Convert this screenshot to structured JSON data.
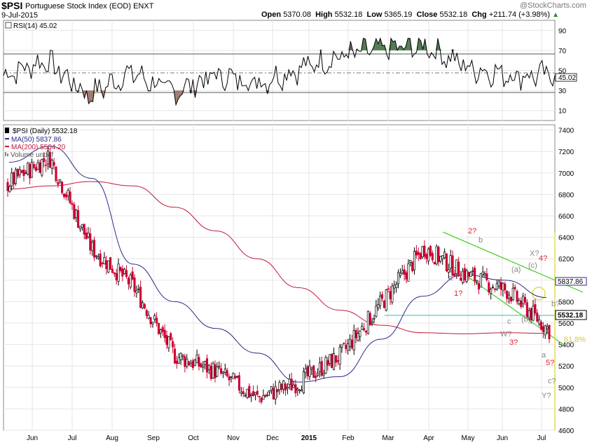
{
  "header": {
    "ticker": "$PSI",
    "description": "Portuguese Stock Index (EOD)  ENXT",
    "date": "9-Jul-2015",
    "open_label": "Open",
    "open": "5370.08",
    "high_label": "High",
    "high": "5532.18",
    "low_label": "Low",
    "low": "5365.19",
    "close_label": "Close",
    "close": "5532.18",
    "chg_label": "Chg",
    "chg": "+211.74 (+3.98%)",
    "up_icon": "up-arrow-icon",
    "copyright": "@StockCharts.com"
  },
  "colors": {
    "rsi_line": "#000000",
    "rsi_fill": "#9e7a6e",
    "rsi_fill_top": "#4f7a4f",
    "price_up": "#000000",
    "price_down": "#cc0033",
    "ma50": "#2a2a8c",
    "ma200": "#c01a3a",
    "channel": "#44cc22",
    "support": "#33bbbb",
    "fib": "#dddd55",
    "ann_red": "#e0202a",
    "ann_gray": "#888888",
    "grid": "#e6e6e6"
  },
  "rsi_panel": {
    "label": "RSI(14) 45.02",
    "ticks": [
      "90",
      "70",
      "50",
      "30",
      "10"
    ],
    "current_label": "45.02",
    "levels": [
      70,
      50,
      30
    ]
  },
  "price_panel": {
    "legend": [
      {
        "label": "$PSI (Daily) 5532.18",
        "icon": "candlestick-icon"
      },
      {
        "label": "MA(50) 5837.86",
        "icon": "line-swatch-icon"
      },
      {
        "label": "MA(200) 5504.20",
        "icon": "line-swatch-icon"
      },
      {
        "label": "Volume undef",
        "icon": "volume-bars-icon"
      }
    ],
    "ticks": [
      "7400",
      "7200",
      "7000",
      "6800",
      "6600",
      "6400",
      "6200",
      "6000",
      "5800",
      "5600",
      "5400",
      "5200",
      "5000",
      "4800",
      "4600"
    ],
    "tags": {
      "ma50": "5837.86",
      "close": "5532.18"
    },
    "fib_label": "61.8%"
  },
  "x_axis": {
    "months": [
      "Jun",
      "Jul",
      "Aug",
      "Sep",
      "Oct",
      "Nov",
      "Dec",
      "2015",
      "Feb",
      "Mar",
      "Apr",
      "May",
      "Jun",
      "Jul"
    ]
  },
  "chart_data": [
    {
      "type": "line",
      "title": "RSI(14) 45.02",
      "ylim": [
        0,
        100
      ],
      "x": [
        "2014-06",
        "2014-07",
        "2014-08",
        "2014-09",
        "2014-10",
        "2014-11",
        "2014-12",
        "2015-01",
        "2015-02",
        "2015-03",
        "2015-04",
        "2015-05",
        "2015-06",
        "2015-07"
      ],
      "series": [
        {
          "name": "RSI(14)",
          "values": [
            45,
            60,
            25,
            48,
            28,
            45,
            38,
            52,
            65,
            72,
            74,
            52,
            45,
            45.02
          ]
        }
      ],
      "reference_lines": [
        70,
        50,
        30
      ]
    },
    {
      "type": "line",
      "title": "$PSI (Daily) 5532.18",
      "ylim": [
        4600,
        7450
      ],
      "x": [
        "2014-06",
        "2014-07",
        "2014-08",
        "2014-09",
        "2014-10",
        "2014-11",
        "2014-12",
        "2015-01",
        "2015-02",
        "2015-03",
        "2015-04",
        "2015-05",
        "2015-06",
        "2015-07"
      ],
      "series": [
        {
          "name": "$PSI (Daily)",
          "values": [
            6900,
            7150,
            6300,
            5950,
            5300,
            5150,
            4900,
            5050,
            5300,
            5800,
            6300,
            6050,
            5900,
            5532.18
          ]
        },
        {
          "name": "MA(50)",
          "values": [
            7100,
            7250,
            6950,
            6150,
            5800,
            5550,
            5320,
            5050,
            5100,
            5450,
            5850,
            6050,
            6000,
            5837.86
          ]
        },
        {
          "name": "MA(200)",
          "values": [
            6850,
            6880,
            6920,
            6880,
            6680,
            6460,
            6200,
            5930,
            5720,
            5580,
            5510,
            5500,
            5510,
            5504.2
          ]
        }
      ],
      "annotations": [
        "2?",
        "b",
        "a",
        "1?",
        "X?",
        "4?",
        "(a)",
        "(c)",
        "b?",
        "c",
        "(b)",
        "W?",
        "3?",
        "a",
        "5?",
        "c?",
        "Y?"
      ]
    }
  ]
}
